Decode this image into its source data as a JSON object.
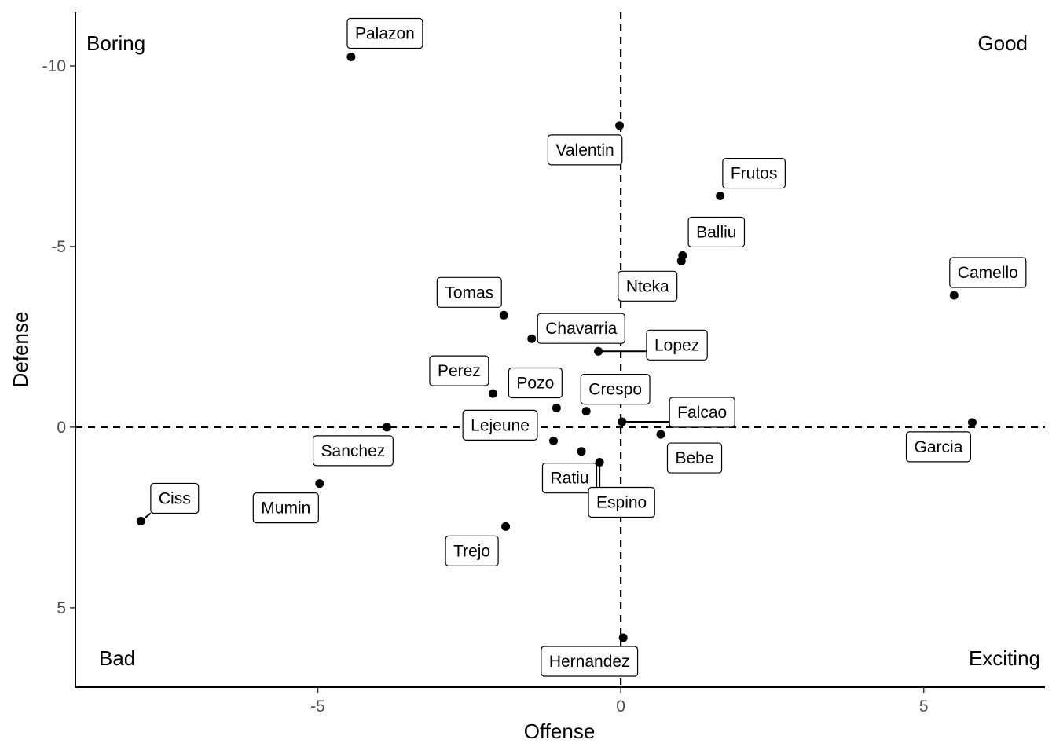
{
  "chart_data": {
    "type": "scatter",
    "xlabel": "Offense",
    "ylabel": "Defense",
    "xlim": [
      -9.0,
      7.0
    ],
    "ylim_reversed": [
      -11.5,
      7.2
    ],
    "x_ticks": [
      {
        "value": -5,
        "label": "-5"
      },
      {
        "value": 0,
        "label": "0"
      },
      {
        "value": 5,
        "label": "5"
      }
    ],
    "y_ticks": [
      {
        "value": -10,
        "label": "-10"
      },
      {
        "value": -5,
        "label": "-5"
      },
      {
        "value": 0,
        "label": "0"
      },
      {
        "value": 5,
        "label": "5"
      }
    ],
    "reference_lines": {
      "x": 0,
      "y": 0,
      "style": "dashed"
    },
    "quadrant_labels": {
      "top_left": "Boring",
      "top_right": "Good",
      "bottom_left": "Bad",
      "bottom_right": "Exciting"
    },
    "points": [
      {
        "name": "Palazon",
        "x": -4.45,
        "y": -10.25
      },
      {
        "name": "Valentin",
        "x": -0.02,
        "y": -8.35
      },
      {
        "name": "Frutos",
        "x": 1.64,
        "y": -6.4
      },
      {
        "name": "Balliu",
        "x": 1.02,
        "y": -4.75
      },
      {
        "name": "Nteka",
        "x": 1.0,
        "y": -4.6
      },
      {
        "name": "Camello",
        "x": 5.5,
        "y": -3.65
      },
      {
        "name": "Tomas",
        "x": -1.93,
        "y": -3.1
      },
      {
        "name": "Chavarria",
        "x": -1.47,
        "y": -2.45
      },
      {
        "name": "Lopez",
        "x": -0.37,
        "y": -2.1
      },
      {
        "name": "Perez",
        "x": -2.11,
        "y": -0.93
      },
      {
        "name": "Pozo",
        "x": -1.06,
        "y": -0.53
      },
      {
        "name": "Crespo",
        "x": -0.57,
        "y": -0.44
      },
      {
        "name": "Falcao",
        "x": 0.02,
        "y": -0.15
      },
      {
        "name": "Garcia",
        "x": 5.8,
        "y": -0.13
      },
      {
        "name": "Sanchez",
        "x": -3.86,
        "y": 0.0
      },
      {
        "name": "Bebe",
        "x": 0.66,
        "y": 0.2
      },
      {
        "name": "Lejeune",
        "x": -1.11,
        "y": 0.38
      },
      {
        "name": "Ratiu",
        "x": -0.65,
        "y": 0.67
      },
      {
        "name": "Espino",
        "x": -0.35,
        "y": 0.97
      },
      {
        "name": "Mumin",
        "x": -4.97,
        "y": 1.56
      },
      {
        "name": "Ciss",
        "x": -7.92,
        "y": 2.6
      },
      {
        "name": "Trejo",
        "x": -1.9,
        "y": 2.75
      },
      {
        "name": "Hernandez",
        "x": 0.04,
        "y": 5.83
      }
    ]
  }
}
